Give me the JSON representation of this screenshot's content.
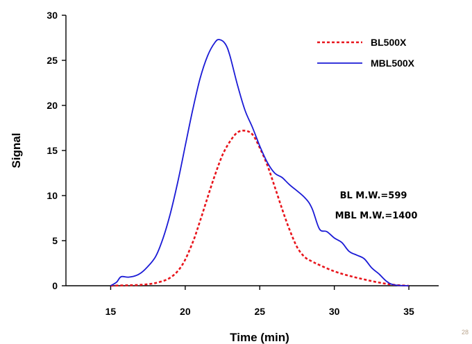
{
  "page_number": "28",
  "chart_data": {
    "type": "line",
    "title": "",
    "xlabel": "Time (min)",
    "ylabel": "Signal",
    "xlim": [
      12,
      37
    ],
    "ylim": [
      0,
      30
    ],
    "x_ticks": [
      15,
      20,
      25,
      30,
      35
    ],
    "y_ticks": [
      0,
      5,
      10,
      15,
      20,
      25,
      30
    ],
    "grid": false,
    "legend_position": "top-right",
    "annotations": [
      "BL M.W.=599",
      "MBL M.W.=1400"
    ],
    "series": [
      {
        "name": "BL500X",
        "style": "dashed",
        "color": "#e8141b",
        "points": [
          [
            15,
            0
          ],
          [
            16,
            0.05
          ],
          [
            17,
            0.1
          ],
          [
            18,
            0.3
          ],
          [
            19,
            0.9
          ],
          [
            19.8,
            2.3
          ],
          [
            20.5,
            4.8
          ],
          [
            21,
            7.2
          ],
          [
            21.5,
            9.8
          ],
          [
            22,
            12.3
          ],
          [
            22.5,
            14.5
          ],
          [
            23,
            16
          ],
          [
            23.5,
            17
          ],
          [
            24,
            17.2
          ],
          [
            24.5,
            16.8
          ],
          [
            25,
            15.3
          ],
          [
            25.5,
            13.4
          ],
          [
            26,
            11
          ],
          [
            26.5,
            8.5
          ],
          [
            27,
            6.2
          ],
          [
            27.5,
            4.3
          ],
          [
            28,
            3.2
          ],
          [
            28.5,
            2.7
          ],
          [
            29,
            2.3
          ],
          [
            30,
            1.6
          ],
          [
            31,
            1.1
          ],
          [
            32,
            0.7
          ],
          [
            33,
            0.35
          ],
          [
            34,
            0.1
          ],
          [
            35,
            0
          ]
        ]
      },
      {
        "name": "MBL500X",
        "style": "solid",
        "color": "#1a1ad6",
        "points": [
          [
            15,
            0
          ],
          [
            15.4,
            0.4
          ],
          [
            15.7,
            1.0
          ],
          [
            16.2,
            0.95
          ],
          [
            16.8,
            1.2
          ],
          [
            17.3,
            1.8
          ],
          [
            18,
            3.2
          ],
          [
            18.5,
            5.2
          ],
          [
            19,
            8
          ],
          [
            19.5,
            11.5
          ],
          [
            20,
            15.5
          ],
          [
            20.5,
            19.5
          ],
          [
            21,
            23
          ],
          [
            21.5,
            25.5
          ],
          [
            22,
            27
          ],
          [
            22.3,
            27.3
          ],
          [
            22.7,
            26.8
          ],
          [
            23,
            25.5
          ],
          [
            23.5,
            22.3
          ],
          [
            24,
            19.5
          ],
          [
            24.5,
            17.6
          ],
          [
            25,
            15.5
          ],
          [
            25.5,
            13.7
          ],
          [
            26,
            12.5
          ],
          [
            26.5,
            12.0
          ],
          [
            27,
            11.2
          ],
          [
            28,
            9.8
          ],
          [
            28.5,
            8.6
          ],
          [
            29,
            6.3
          ],
          [
            29.5,
            6.0
          ],
          [
            30,
            5.3
          ],
          [
            30.5,
            4.8
          ],
          [
            31,
            3.8
          ],
          [
            31.5,
            3.4
          ],
          [
            32,
            3.0
          ],
          [
            32.5,
            2.0
          ],
          [
            33,
            1.3
          ],
          [
            33.5,
            0.5
          ],
          [
            34,
            0.1
          ],
          [
            35,
            0
          ]
        ]
      }
    ]
  }
}
